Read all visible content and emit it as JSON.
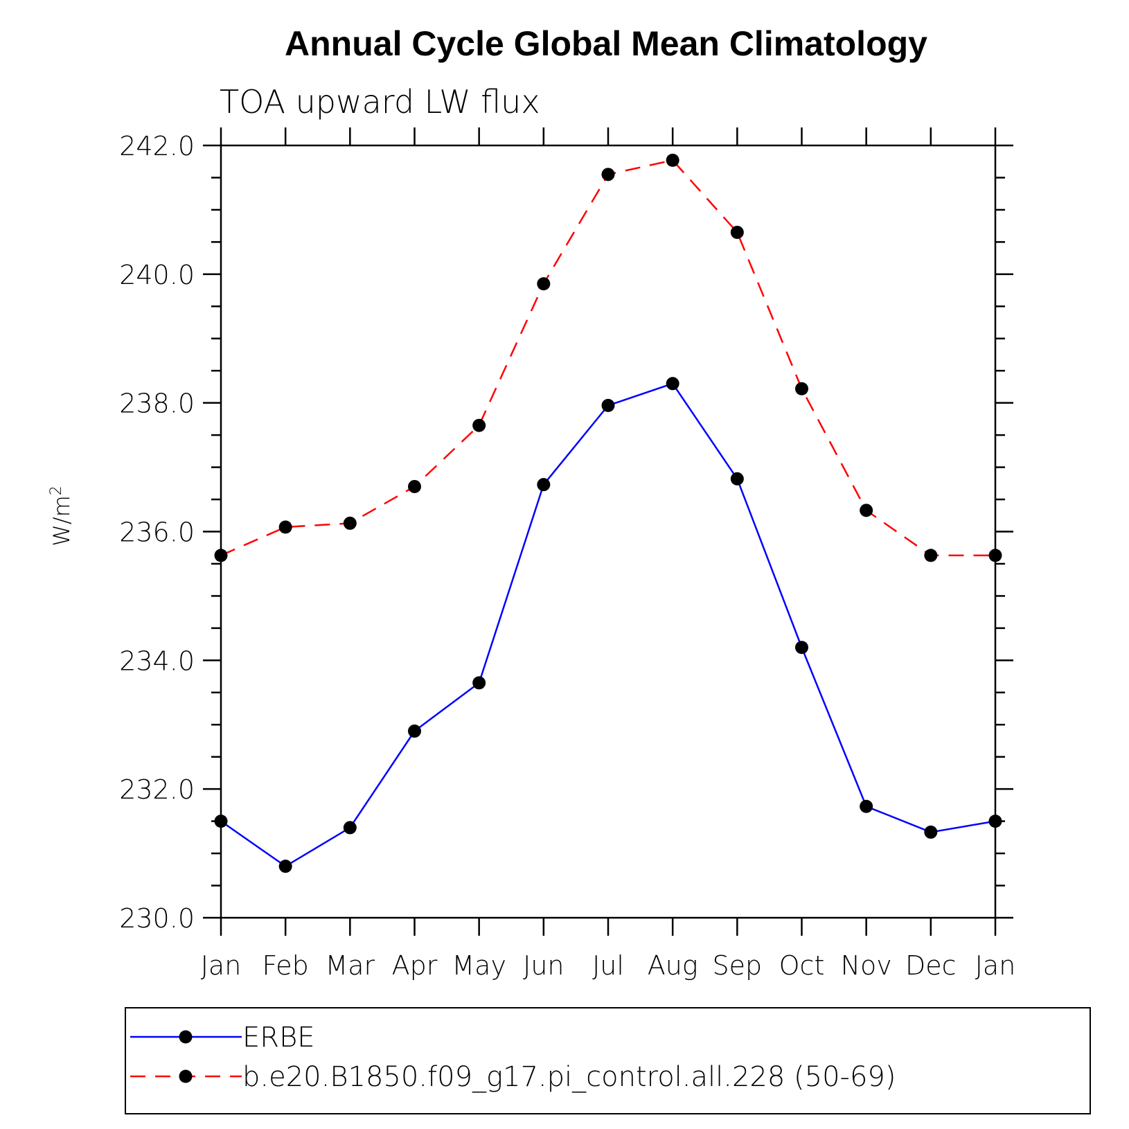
{
  "chart_data": {
    "type": "line",
    "title": "Annual Cycle Global Mean Climatology",
    "subtitle": "TOA upward LW flux",
    "xlabel": "",
    "ylabel": "W/m",
    "ylabel_superscript": "2",
    "categories": [
      "Jan",
      "Feb",
      "Mar",
      "Apr",
      "May",
      "Jun",
      "Jul",
      "Aug",
      "Sep",
      "Oct",
      "Nov",
      "Dec",
      "Jan"
    ],
    "ylim": [
      230.0,
      242.0
    ],
    "yticks": [
      "230.0",
      "232.0",
      "234.0",
      "236.0",
      "238.0",
      "240.0",
      "242.0"
    ],
    "series": [
      {
        "name": "ERBE",
        "color": "#0000ff",
        "dash": "solid",
        "values": [
          231.5,
          230.8,
          231.4,
          232.9,
          233.65,
          236.73,
          237.96,
          238.3,
          236.82,
          234.2,
          231.73,
          231.33,
          231.5
        ]
      },
      {
        "name": "b.e20.B1850.f09_g17.pi_control.all.228 (50-69)",
        "color": "#ff0000",
        "dash": "dashed",
        "values": [
          235.63,
          236.07,
          236.13,
          236.7,
          237.65,
          239.85,
          241.55,
          241.77,
          240.65,
          238.22,
          236.33,
          235.63,
          235.63
        ]
      }
    ],
    "marker_color": "#000000",
    "legend": "bottom",
    "grid": false
  }
}
